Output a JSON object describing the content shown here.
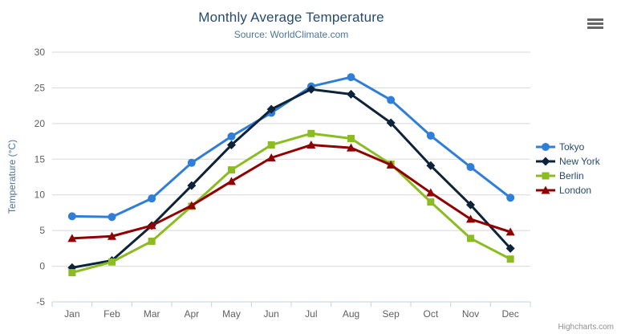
{
  "header": {
    "title": "Monthly Average Temperature",
    "subtitle": "Source: WorldClimate.com"
  },
  "credit": {
    "label": "Highcharts.com"
  },
  "context_menu": {
    "icon": "hamburger-icon"
  },
  "colors": {
    "title": "#274b6d",
    "subtitle": "#4d759e",
    "axis_title": "#4d759e",
    "tick_label": "#606060",
    "grid": "#d8d8d8",
    "axis_line": "#c0d0e0",
    "legend_text": "#274b6d",
    "credit": "#909090",
    "menu_icon": "#666666"
  },
  "chart_data": {
    "type": "line",
    "title": "Monthly Average Temperature",
    "subtitle": "Source: WorldClimate.com",
    "xlabel": "",
    "ylabel": "Temperature (°C)",
    "ylim": [
      -5,
      30
    ],
    "ytick_interval": 5,
    "grid": true,
    "legend_position": "right",
    "categories": [
      "Jan",
      "Feb",
      "Mar",
      "Apr",
      "May",
      "Jun",
      "Jul",
      "Aug",
      "Sep",
      "Oct",
      "Nov",
      "Dec"
    ],
    "series": [
      {
        "name": "Tokyo",
        "color": "#2f7ed8",
        "marker": "circle",
        "values": [
          7.0,
          6.9,
          9.5,
          14.5,
          18.2,
          21.5,
          25.2,
          26.5,
          23.3,
          18.3,
          13.9,
          9.6
        ]
      },
      {
        "name": "New York",
        "color": "#0d233a",
        "marker": "diamond",
        "values": [
          -0.2,
          0.8,
          5.7,
          11.3,
          17.0,
          22.0,
          24.8,
          24.1,
          20.1,
          14.1,
          8.6,
          2.5
        ]
      },
      {
        "name": "Berlin",
        "color": "#8bbc21",
        "marker": "square",
        "values": [
          -0.9,
          0.6,
          3.5,
          8.4,
          13.5,
          17.0,
          18.6,
          17.9,
          14.3,
          9.0,
          3.9,
          1.0
        ]
      },
      {
        "name": "London",
        "color": "#910000",
        "marker": "triangle",
        "values": [
          3.9,
          4.2,
          5.7,
          8.5,
          11.9,
          15.2,
          17.0,
          16.6,
          14.2,
          10.3,
          6.6,
          4.8
        ]
      }
    ]
  }
}
